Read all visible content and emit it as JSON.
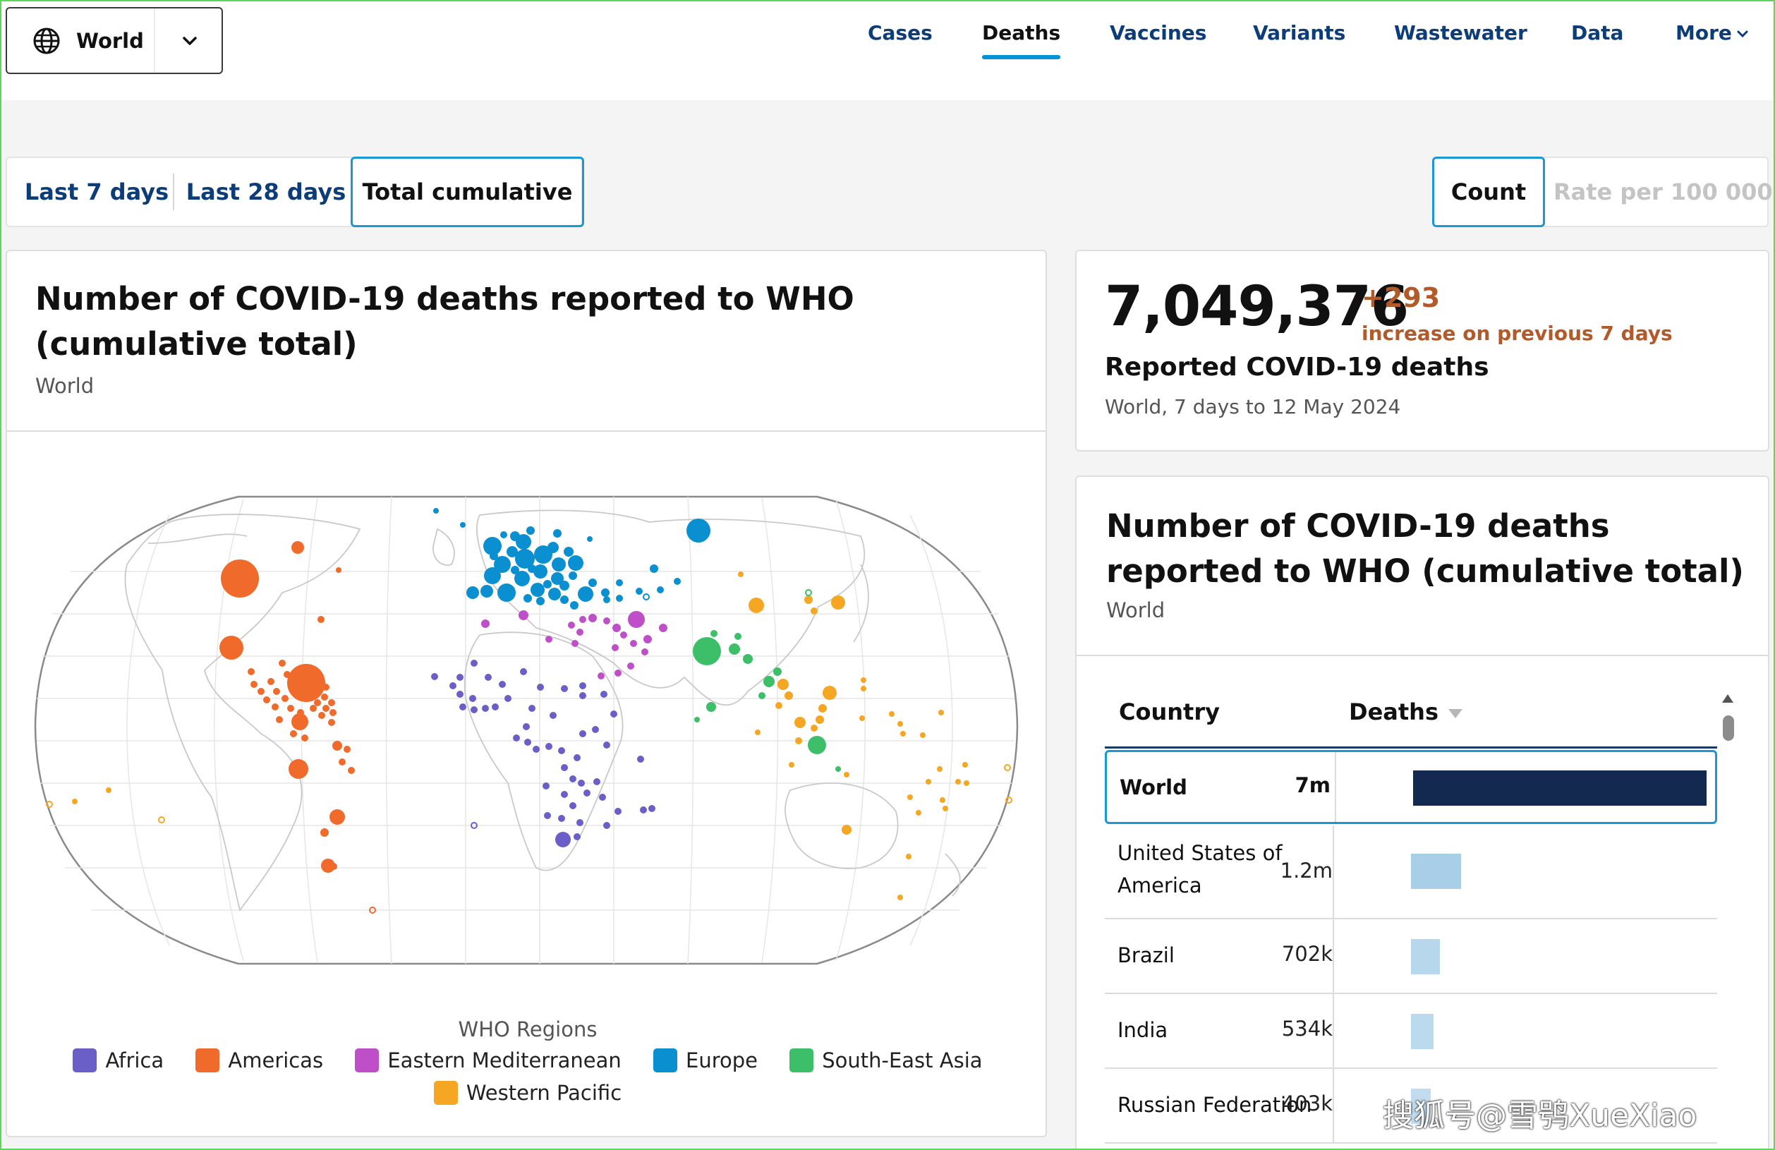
{
  "header": {
    "region_label": "World",
    "nav": [
      {
        "label": "Cases",
        "active": false
      },
      {
        "label": "Deaths",
        "active": true
      },
      {
        "label": "Vaccines",
        "active": false
      },
      {
        "label": "Variants",
        "active": false
      },
      {
        "label": "Wastewater",
        "active": false
      },
      {
        "label": "Data",
        "active": false
      },
      {
        "label": "More",
        "active": false
      }
    ]
  },
  "filters": {
    "period": [
      "Last 7 days",
      "Last 28 days",
      "Total cumulative"
    ],
    "period_selected": "Total cumulative",
    "measure": [
      "Count",
      "Rate per 100 000"
    ],
    "measure_selected": "Count"
  },
  "map_card": {
    "title": "Number of COVID-19 deaths reported to WHO (cumulative total)",
    "subtitle": "World",
    "legend_title": "WHO Regions",
    "legend": [
      {
        "name": "Africa",
        "color": "#6a5fc7"
      },
      {
        "name": "Americas",
        "color": "#f06a2b"
      },
      {
        "name": "Eastern Mediterranean",
        "color": "#bf4fc8"
      },
      {
        "name": "Europe",
        "color": "#0a8fd0"
      },
      {
        "name": "South-East Asia",
        "color": "#3dbf6a"
      },
      {
        "name": "Western Pacific",
        "color": "#f5a623"
      }
    ]
  },
  "summary": {
    "total": "7,049,376",
    "delta": "+293",
    "delta_text": "increase on previous 7 days",
    "label": "Reported COVID-19 deaths",
    "sub": "World, 7 days to 12 May 2024"
  },
  "table_card": {
    "title": "Number of COVID-19 deaths reported to WHO (cumulative total)",
    "subtitle": "World",
    "col_country": "Country",
    "col_deaths": "Deaths",
    "rows": [
      {
        "country": "World",
        "deaths_label": "7m",
        "deaths": 7049376,
        "selected": true
      },
      {
        "country": "United States of America",
        "deaths_label": "1.2m",
        "deaths": 1200000,
        "selected": false
      },
      {
        "country": "Brazil",
        "deaths_label": "702k",
        "deaths": 702000,
        "selected": false
      },
      {
        "country": "India",
        "deaths_label": "534k",
        "deaths": 534000,
        "selected": false
      },
      {
        "country": "Russian Federation",
        "deaths_label": "403k",
        "deaths": 403000,
        "selected": false
      }
    ],
    "bar_color_selected": "#13294f",
    "bar_color": "#a9cfe8"
  },
  "watermark": "搜狐号@雪鸮XueXiao"
}
